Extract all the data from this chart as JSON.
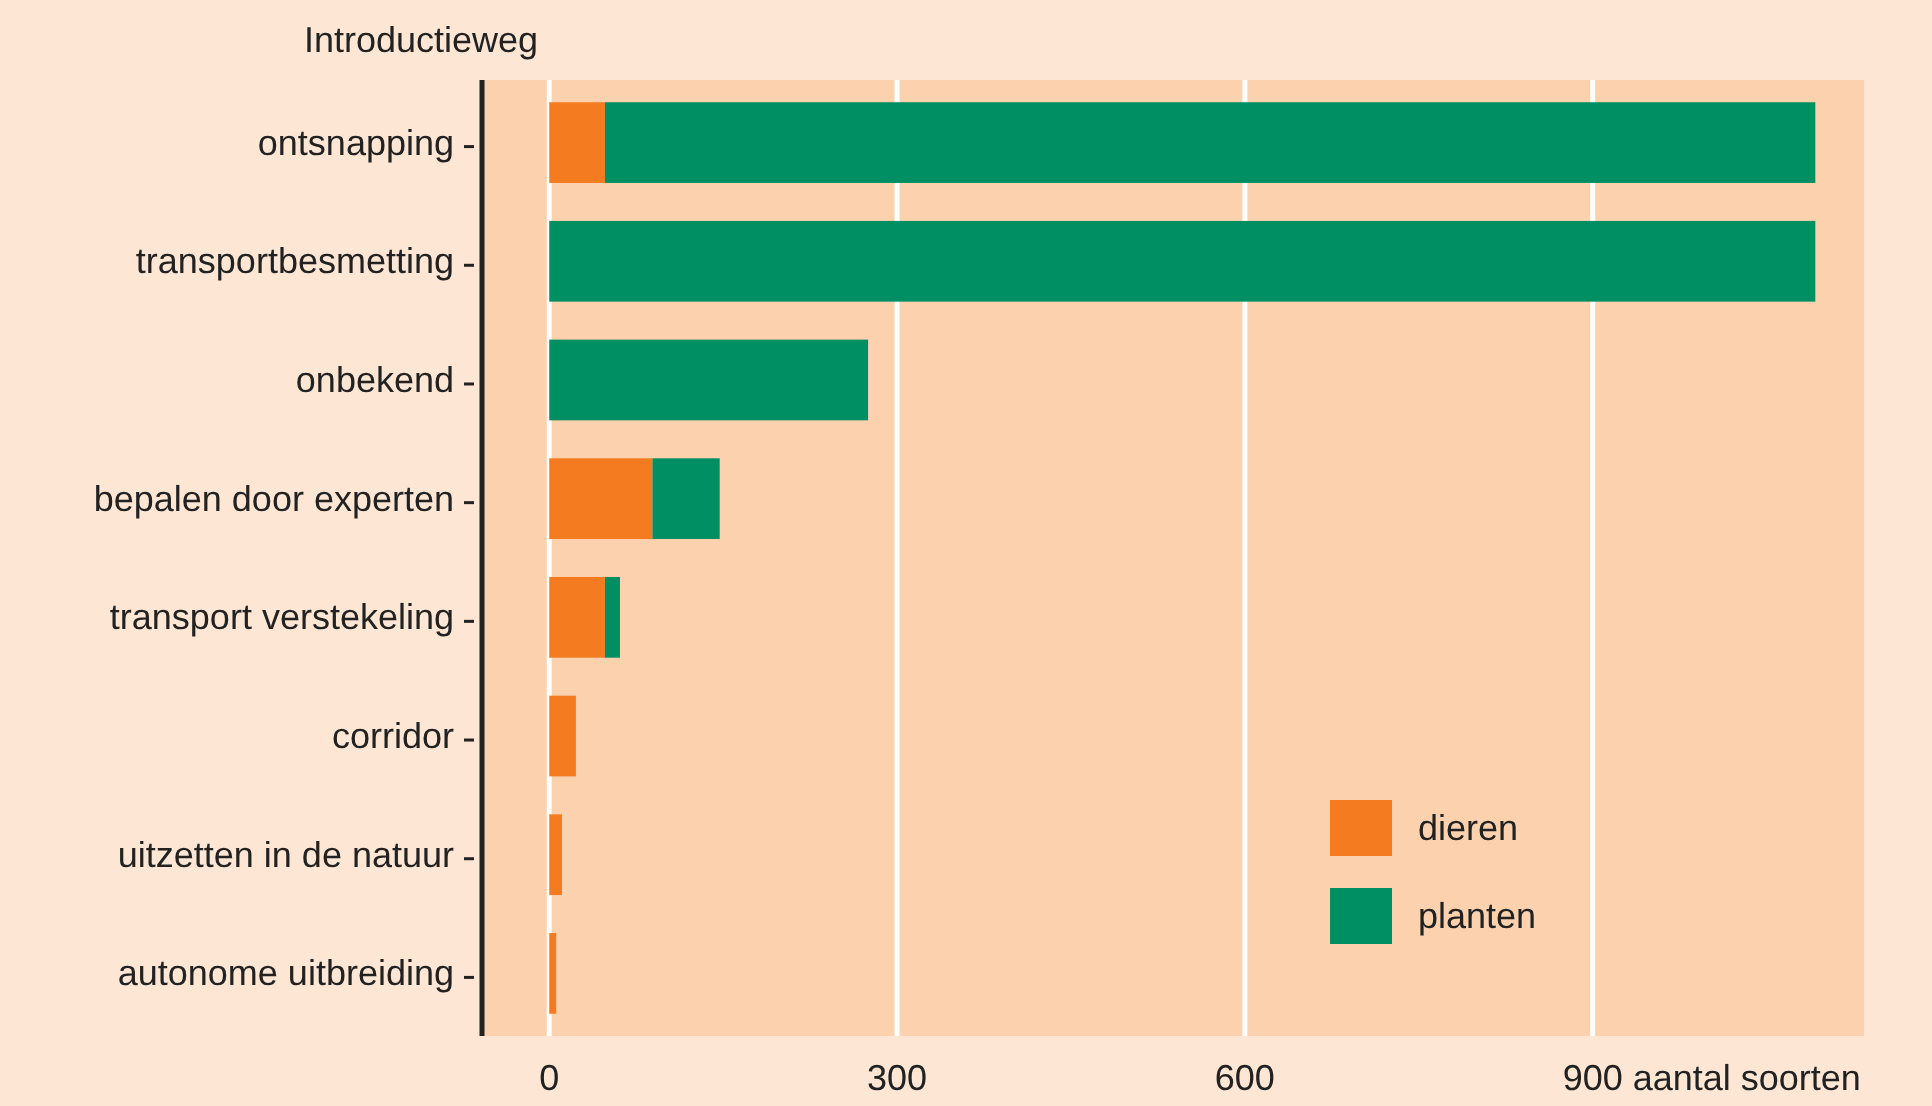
{
  "chart_data": {
    "type": "bar",
    "orientation": "horizontal",
    "stacked": true,
    "ylabel": "Introductieweg",
    "xlabel": "aantal soorten",
    "categories": [
      "ontsnapping",
      "transportbesmetting",
      "onbekend",
      "bepalen door experten",
      "transport verstekeling",
      "corridor",
      "uitzetten in de natuur",
      "autonome uitbreiding"
    ],
    "series": [
      {
        "name": "dieren",
        "color": "#f47b20",
        "values": [
          48,
          0,
          0,
          89,
          48,
          23,
          11,
          6
        ]
      },
      {
        "name": "planten",
        "color": "#008f62",
        "values": [
          1044,
          1092,
          275,
          58,
          13,
          0,
          0,
          0
        ]
      }
    ],
    "xlim": [
      -58,
      1134
    ],
    "xticks": [
      0,
      300,
      600,
      900
    ],
    "grid": "x",
    "legend": "bottom right"
  }
}
